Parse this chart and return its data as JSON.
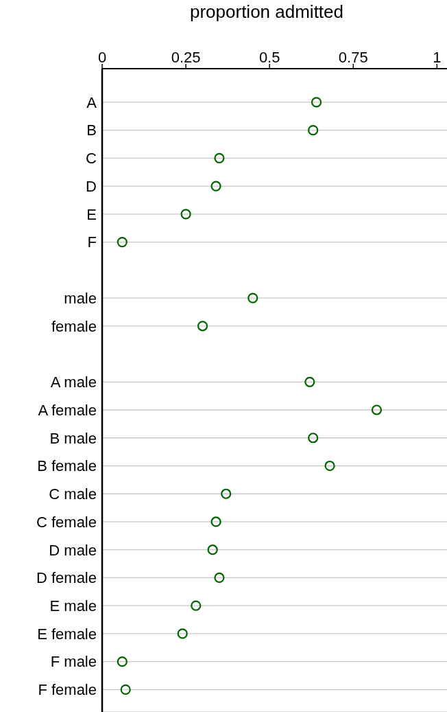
{
  "chart_data": {
    "type": "scatter",
    "orientation": "horizontal",
    "xlabel": "proportion admitted",
    "categories": [
      "A",
      "B",
      "C",
      "D",
      "E",
      "F",
      null,
      "male",
      "female",
      null,
      "A  male",
      "A  female",
      "B  male",
      "B  female",
      "C  male",
      "C  female",
      "D  male",
      "D  female",
      "E  male",
      "E  female",
      "F  male",
      "F  female"
    ],
    "values": [
      0.64,
      0.63,
      0.35,
      0.34,
      0.25,
      0.06,
      null,
      0.45,
      0.3,
      null,
      0.62,
      0.82,
      0.63,
      0.68,
      0.37,
      0.34,
      0.33,
      0.35,
      0.28,
      0.24,
      0.06,
      0.07
    ],
    "color": "#006400",
    "marker": "circle",
    "xlim": [
      0,
      1.03
    ],
    "xticks": [
      0,
      0.25,
      0.5,
      0.75,
      1
    ],
    "grid": "y"
  }
}
